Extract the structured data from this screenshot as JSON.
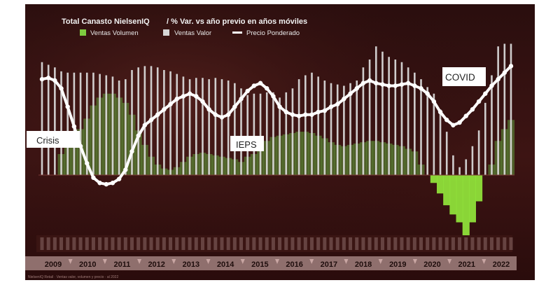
{
  "chart_data": {
    "type": "bar",
    "title": "Total Canasto NielsenIQ",
    "subtitle": "/ % Var. vs año previo en años móviles",
    "legend": [
      {
        "name": "Ventas Volumen",
        "color": "#7ecb3f"
      },
      {
        "name": "Ventas Valor",
        "color": "#d6d6d6"
      },
      {
        "name": "Precio Ponderado",
        "color": "#ffffff"
      }
    ],
    "years": [
      "2009",
      "2010",
      "2011",
      "2012",
      "2013",
      "2014",
      "2015",
      "2016",
      "2017",
      "2018",
      "2019",
      "2020",
      "2021",
      "2022"
    ],
    "annotations": [
      {
        "text": "Crisis"
      },
      {
        "text": "IEPS"
      },
      {
        "text": "COVID"
      }
    ],
    "footnote": "NielsenIQ Retail · Ventas valor, volumen y precio · al 2022",
    "series": [
      {
        "name": "Ventas Valor",
        "values": [
          8.6,
          8.4,
          8.2,
          7.9,
          7.8,
          7.8,
          7.8,
          7.8,
          7.8,
          7.7,
          7.6,
          7.5,
          7.2,
          7.3,
          8.0,
          8.2,
          8.3,
          8.3,
          8.2,
          8.0,
          7.9,
          7.7,
          7.5,
          7.3,
          7.4,
          7.4,
          7.3,
          7.4,
          7.3,
          7.2,
          7.0,
          6.6,
          6.1,
          6.2,
          6.2,
          6.3,
          6.3,
          5.9,
          6.3,
          6.6,
          7.3,
          7.6,
          7.8,
          7.5,
          7.2,
          7.0,
          6.9,
          6.8,
          7.0,
          7.2,
          8.2,
          8.8,
          9.8,
          9.4,
          9.0,
          8.8,
          8.6,
          8.2,
          7.8,
          7.3,
          6.7,
          6.2,
          5.0,
          3.3,
          1.5,
          0.6,
          1.2,
          2.2,
          3.4,
          5.5,
          7.6,
          9.8,
          10.0,
          10.0
        ]
      },
      {
        "name": "Ventas Volumen",
        "values": [
          0,
          0,
          0,
          1.6,
          2.2,
          2.8,
          3.5,
          4.3,
          5.3,
          5.9,
          6.2,
          6.2,
          5.9,
          5.5,
          4.6,
          3.4,
          2.3,
          1.4,
          0.8,
          0.5,
          0.4,
          0.6,
          1.0,
          1.4,
          1.6,
          1.7,
          1.6,
          1.5,
          1.4,
          1.3,
          1.2,
          1.0,
          1.4,
          1.6,
          2.2,
          2.6,
          2.9,
          3.0,
          3.1,
          3.2,
          3.3,
          3.3,
          3.2,
          3.0,
          2.8,
          2.5,
          2.3,
          2.2,
          2.3,
          2.4,
          2.5,
          2.6,
          2.6,
          2.5,
          2.4,
          2.3,
          2.2,
          2.0,
          1.8,
          0.8,
          0,
          -0.6,
          -1.4,
          -2.3,
          -3.0,
          -3.6,
          -4.8,
          -3.6,
          -2.0,
          0,
          0.8,
          2.6,
          3.5,
          4.2
        ]
      },
      {
        "name": "Precio Ponderado",
        "values": [
          7.3,
          7.4,
          7.2,
          6.6,
          5.2,
          3.7,
          2.2,
          0.9,
          -0.2,
          -0.6,
          -0.7,
          -0.6,
          -0.3,
          0.4,
          1.8,
          3.0,
          3.8,
          4.2,
          4.6,
          5.0,
          5.4,
          5.8,
          6.0,
          6.2,
          6.0,
          5.6,
          5.0,
          4.6,
          4.4,
          4.6,
          5.2,
          5.8,
          6.4,
          6.8,
          7.0,
          6.6,
          6.0,
          5.2,
          4.8,
          4.6,
          4.5,
          4.6,
          4.6,
          4.8,
          4.9,
          5.2,
          5.4,
          5.8,
          6.2,
          6.6,
          7.0,
          7.2,
          7.0,
          6.9,
          6.8,
          6.8,
          6.9,
          7.0,
          6.8,
          6.6,
          6.2,
          5.6,
          4.8,
          4.2,
          3.8,
          4.0,
          4.5,
          5.0,
          5.6,
          6.2,
          6.8,
          7.3,
          7.8,
          8.3
        ]
      }
    ]
  }
}
